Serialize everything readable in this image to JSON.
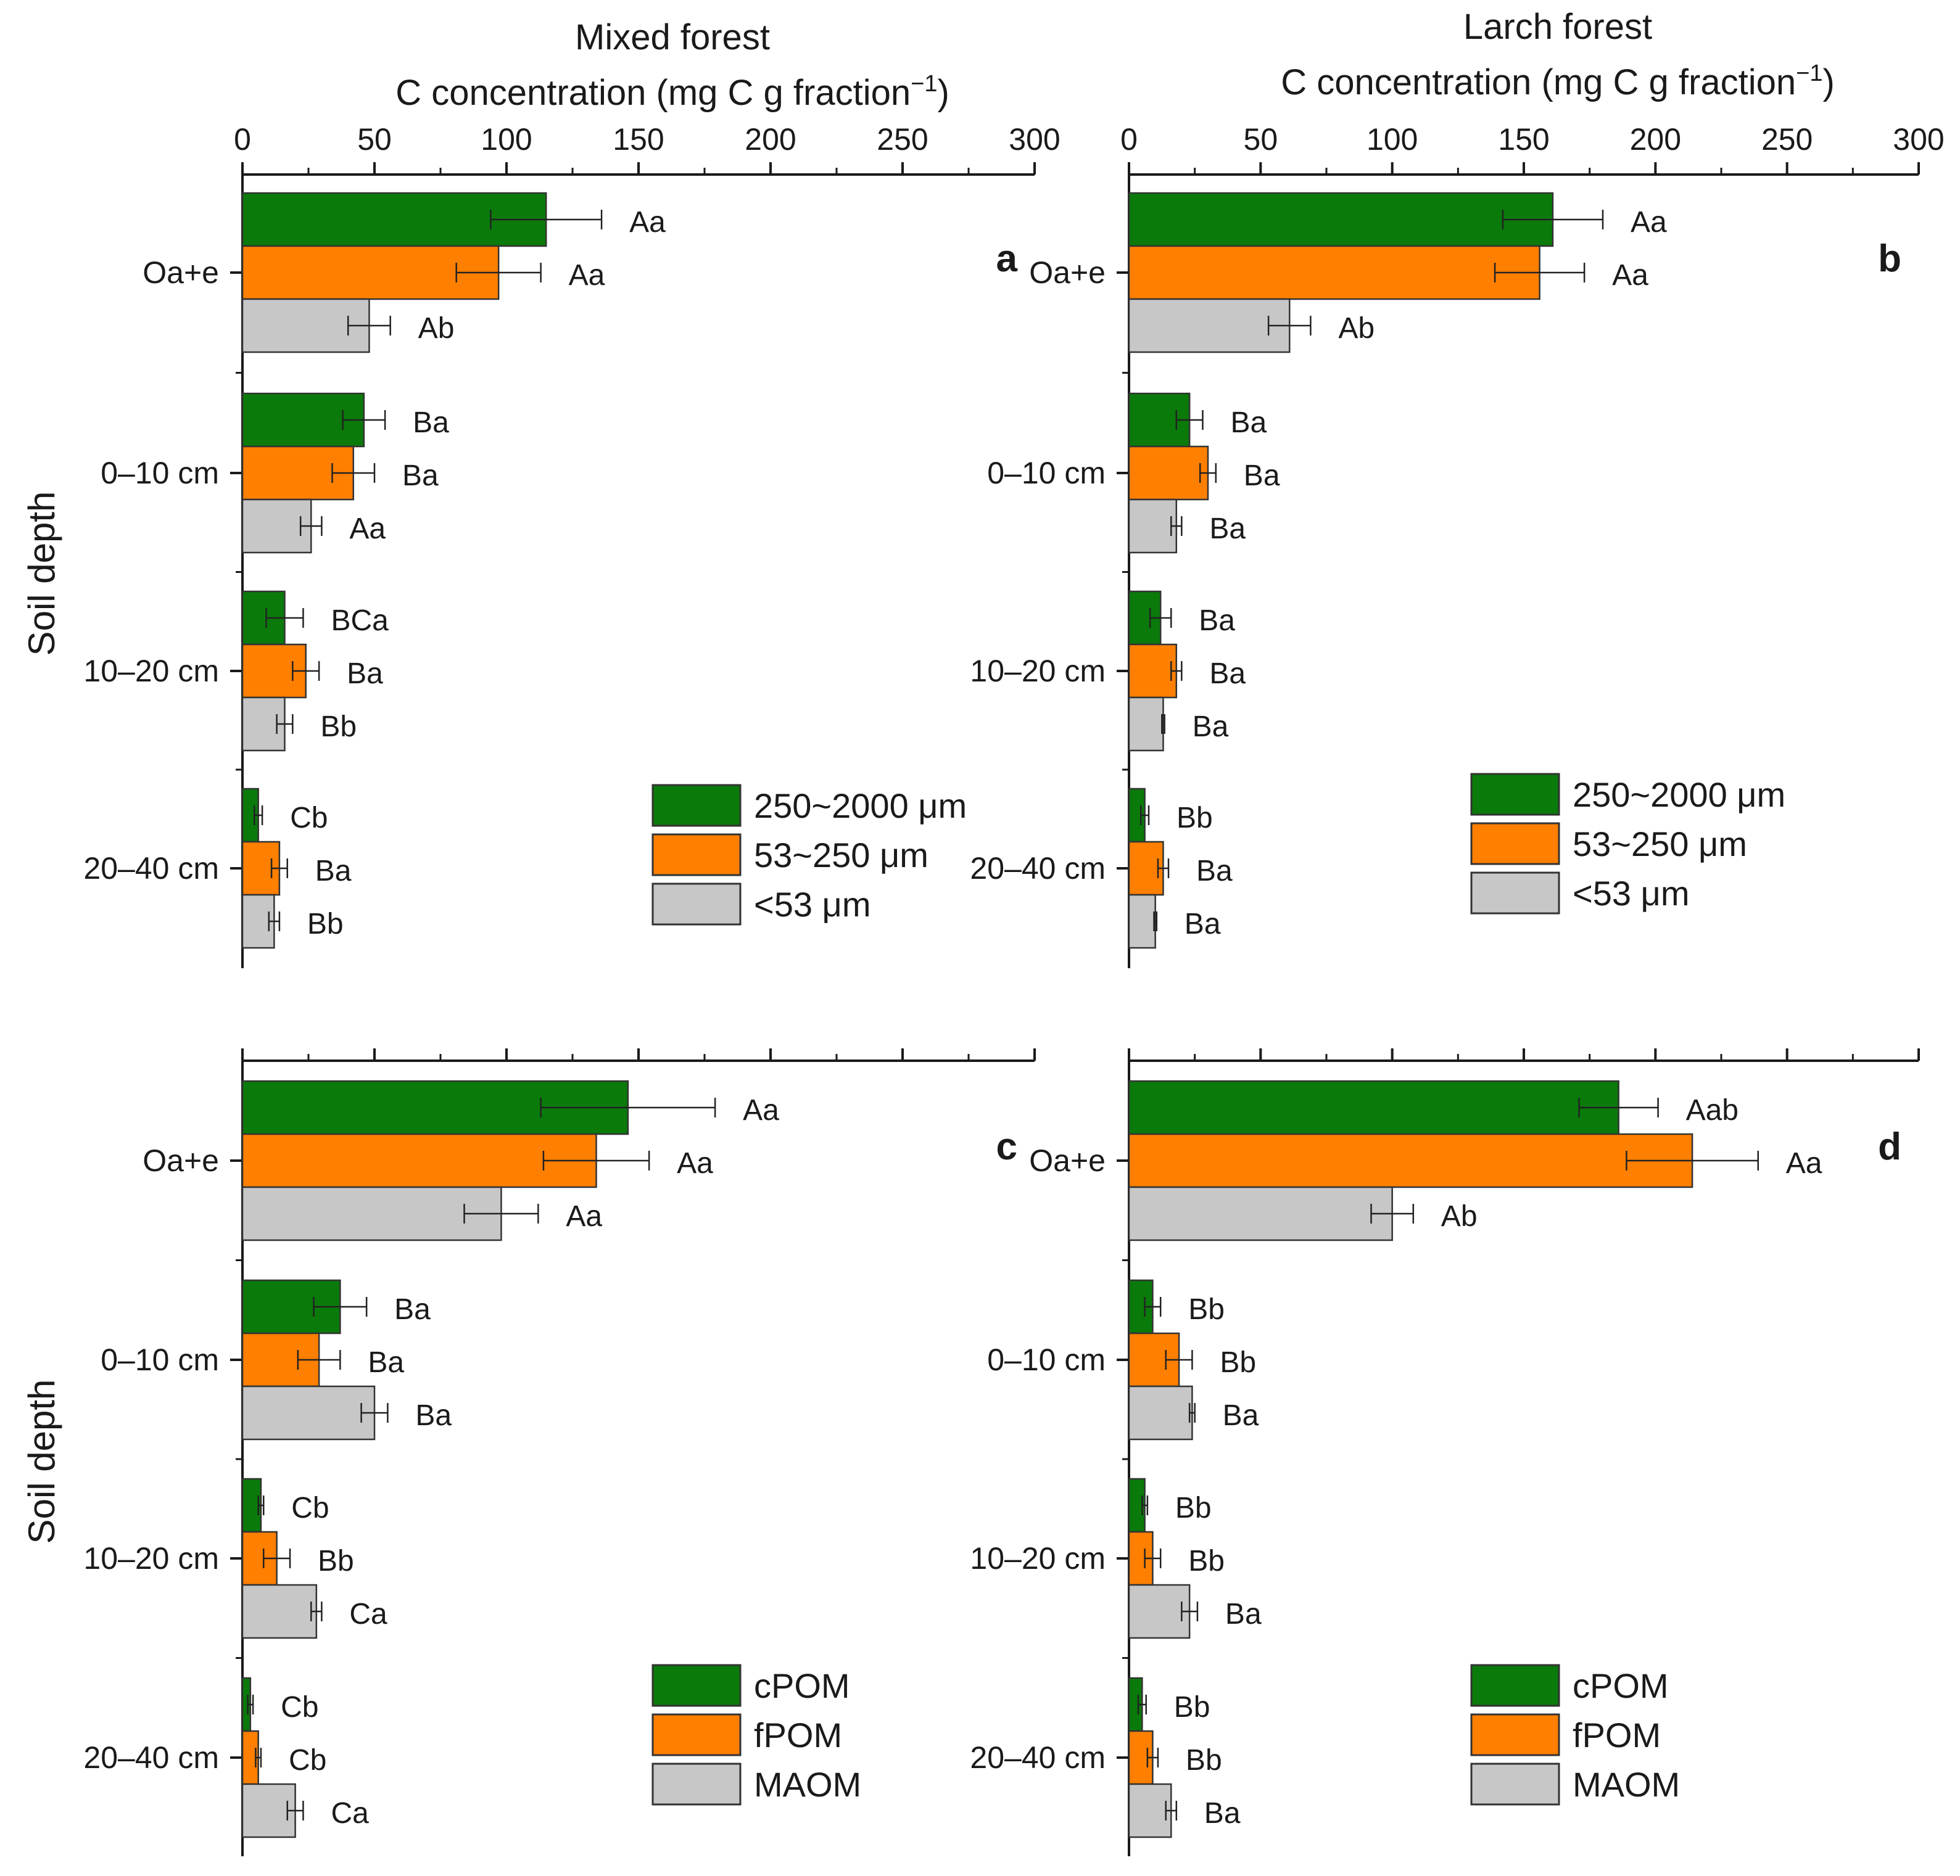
{
  "column_titles": [
    "Mixed forest",
    "Larch forest"
  ],
  "axis_title_x": "C concentration (mg C g fraction",
  "axis_title_x_exponent": "−1",
  "axis_title_x_close": ")",
  "axis_title_y": "Soil depth",
  "colors": {
    "cPOM": "#0a7a0a",
    "fPOM": "#ff7f00",
    "MAOM": "#c7c7c7",
    "axis": "#1a1a1a"
  },
  "chart_data": [
    {
      "type": "bar",
      "panel_label": "a",
      "title": "Mixed forest",
      "xlabel": "C concentration (mg C g fraction−1)",
      "ylabel": "Soil depth",
      "xlim": [
        0,
        300
      ],
      "xticks": [
        0,
        50,
        100,
        150,
        200,
        250,
        300
      ],
      "categories": [
        "Oa+e",
        "0–10 cm",
        "10–20 cm",
        "20–40 cm"
      ],
      "legend": [
        "250~2000 μm",
        "53~250 μm",
        "<53 μm"
      ],
      "legend_position": "bottom-right",
      "series": [
        {
          "name": "250~2000 μm",
          "values": [
            115,
            46,
            16,
            6
          ],
          "errors": [
            21,
            8,
            7,
            1.5
          ],
          "labels": [
            "Aa",
            "Ba",
            "BCa",
            "Cb"
          ]
        },
        {
          "name": "53~250 μm",
          "values": [
            97,
            42,
            24,
            14
          ],
          "errors": [
            16,
            8,
            5,
            3
          ],
          "labels": [
            "Aa",
            "Ba",
            "Ba",
            "Ba"
          ]
        },
        {
          "name": "<53 μm",
          "values": [
            48,
            26,
            16,
            12
          ],
          "errors": [
            8,
            4,
            3,
            2
          ],
          "labels": [
            "Ab",
            "Aa",
            "Bb",
            "Bb"
          ]
        }
      ]
    },
    {
      "type": "bar",
      "panel_label": "b",
      "title": "Larch forest",
      "xlabel": "C concentration (mg C g fraction−1)",
      "ylabel": "",
      "xlim": [
        0,
        300
      ],
      "xticks": [
        0,
        50,
        100,
        150,
        200,
        250,
        300
      ],
      "categories": [
        "Oa+e",
        "0–10 cm",
        "10–20 cm",
        "20–40 cm"
      ],
      "legend": [
        "250~2000 μm",
        "53~250 μm",
        "<53 μm"
      ],
      "legend_position": "bottom-right",
      "series": [
        {
          "name": "250~2000 μm",
          "values": [
            161,
            23,
            12,
            6
          ],
          "errors": [
            19,
            5,
            4,
            1.5
          ],
          "labels": [
            "Aa",
            "Ba",
            "Ba",
            "Bb"
          ]
        },
        {
          "name": "53~250 μm",
          "values": [
            156,
            30,
            18,
            13
          ],
          "errors": [
            17,
            3,
            2,
            2
          ],
          "labels": [
            "Aa",
            "Ba",
            "Ba",
            "Ba"
          ]
        },
        {
          "name": "<53 μm",
          "values": [
            61,
            18,
            13,
            10
          ],
          "errors": [
            8,
            2,
            0.5,
            0.5
          ],
          "labels": [
            "Ab",
            "Ba",
            "Ba",
            "Ba"
          ]
        }
      ]
    },
    {
      "type": "bar",
      "panel_label": "c",
      "title": "",
      "xlabel": "",
      "ylabel": "Soil depth",
      "xlim": [
        0,
        300
      ],
      "xticks": [
        0,
        50,
        100,
        150,
        200,
        250,
        300
      ],
      "categories": [
        "Oa+e",
        "0–10 cm",
        "10–20 cm",
        "20–40 cm"
      ],
      "legend": [
        "cPOM",
        "fPOM",
        "MAOM"
      ],
      "legend_position": "bottom-right",
      "series": [
        {
          "name": "cPOM",
          "values": [
            146,
            37,
            7,
            3
          ],
          "errors": [
            33,
            10,
            1,
            1
          ],
          "labels": [
            "Aa",
            "Ba",
            "Cb",
            "Cb"
          ]
        },
        {
          "name": "fPOM",
          "values": [
            134,
            29,
            13,
            6
          ],
          "errors": [
            20,
            8,
            5,
            1
          ],
          "labels": [
            "Aa",
            "Ba",
            "Bb",
            "Cb"
          ]
        },
        {
          "name": "MAOM",
          "values": [
            98,
            50,
            28,
            20
          ],
          "errors": [
            14,
            5,
            2,
            3
          ],
          "labels": [
            "Aa",
            "Ba",
            "Ca",
            "Ca"
          ]
        }
      ]
    },
    {
      "type": "bar",
      "panel_label": "d",
      "title": "",
      "xlabel": "",
      "ylabel": "",
      "xlim": [
        0,
        300
      ],
      "xticks": [
        0,
        50,
        100,
        150,
        200,
        250,
        300
      ],
      "categories": [
        "Oa+e",
        "0–10 cm",
        "10–20 cm",
        "20–40 cm"
      ],
      "legend": [
        "cPOM",
        "fPOM",
        "MAOM"
      ],
      "legend_position": "bottom-right",
      "series": [
        {
          "name": "cPOM",
          "values": [
            186,
            9,
            6,
            5
          ],
          "errors": [
            15,
            3,
            1,
            1.5
          ],
          "labels": [
            "Aab",
            "Bb",
            "Bb",
            "Bb"
          ]
        },
        {
          "name": "fPOM",
          "values": [
            214,
            19,
            9,
            9
          ],
          "errors": [
            25,
            5,
            3,
            2
          ],
          "labels": [
            "Aa",
            "Bb",
            "Bb",
            "Bb"
          ]
        },
        {
          "name": "MAOM",
          "values": [
            100,
            24,
            23,
            16
          ],
          "errors": [
            8,
            1,
            3,
            2
          ],
          "labels": [
            "Ab",
            "Ba",
            "Ba",
            "Ba"
          ]
        }
      ]
    }
  ]
}
